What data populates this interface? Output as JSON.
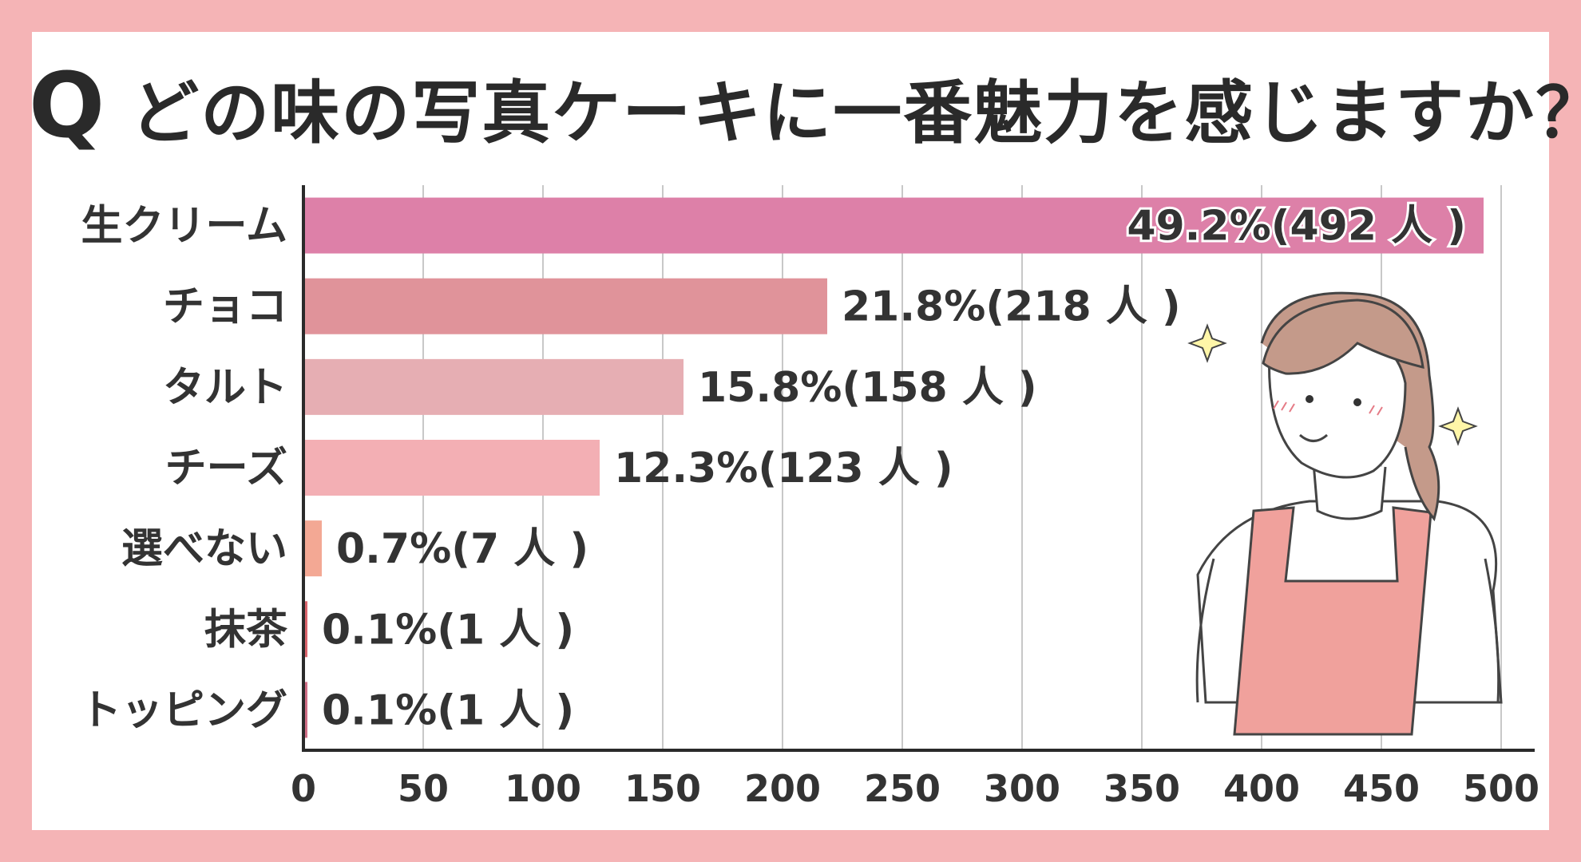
{
  "title": {
    "q": "Q",
    "text": "どの味の写真ケーキに一番魅力を感じますか？"
  },
  "chart_data": {
    "type": "bar",
    "orientation": "horizontal",
    "categories": [
      "生クリーム",
      "チョコ",
      "タルト",
      "チーズ",
      "選べない",
      "抹茶",
      "トッピング"
    ],
    "values": [
      492,
      218,
      158,
      123,
      7,
      1,
      1
    ],
    "value_labels": [
      "49.2%(492 人 )",
      "21.8%(218 人 )",
      "15.8%(158 人 )",
      "12.3%(123 人 )",
      "0.7%(7 人 )",
      "0.1%(1 人 )",
      "0.1%(1 人 )"
    ],
    "bar_colors": [
      "#dd80a8",
      "#e0939a",
      "#e6aeb3",
      "#f3afb4",
      "#f3a894",
      "#d9646c",
      "#cf6e86"
    ],
    "xlim": [
      0,
      500
    ],
    "ticks": [
      "0",
      "50",
      "100",
      "150",
      "200",
      "250",
      "300",
      "350",
      "400",
      "450",
      "500"
    ],
    "grid": true,
    "xlabel": "",
    "ylabel": ""
  },
  "illustration": {
    "icon": "woman-in-apron-illustration",
    "sparkle_icon": "sparkle-icon"
  },
  "colors": {
    "border": "#f5b4b6",
    "background": "#ffffff",
    "text": "#333333",
    "grid": "#c8c8c8",
    "axis": "#2a2a2a"
  }
}
